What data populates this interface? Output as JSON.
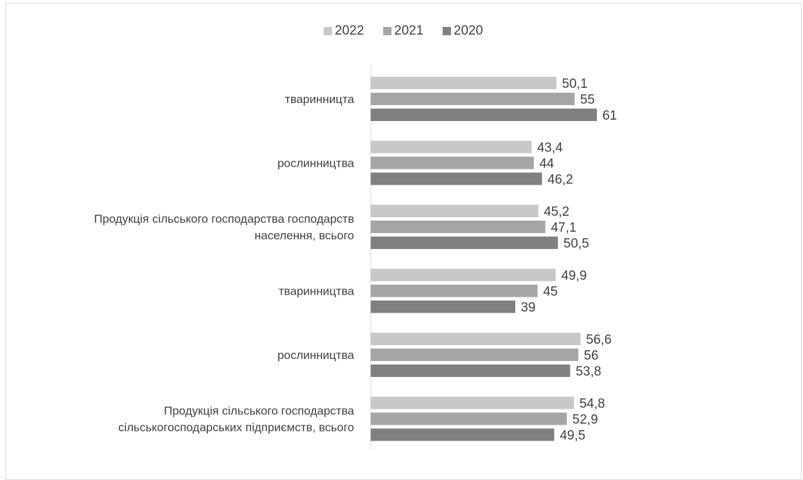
{
  "chart_data": {
    "type": "bar",
    "orientation": "horizontal",
    "title": "",
    "xlabel": "",
    "ylabel": "",
    "xlim": [
      0,
      62.5
    ],
    "grid": false,
    "legend_position": "top",
    "categories": [
      [
        "тваринницта"
      ],
      [
        "рослинництва"
      ],
      [
        "Продукція сільського господарства господарств",
        "населення, всього"
      ],
      [
        "тваринництва"
      ],
      [
        "рослинництва"
      ],
      [
        "Продукція сільського господарства",
        "сільськогосподарських підприємств, всього"
      ]
    ],
    "series": [
      {
        "name": "2022",
        "color": "#c8c8c8",
        "values": [
          50.1,
          43.4,
          45.2,
          49.9,
          56.6,
          54.8
        ],
        "labels": [
          "50,1",
          "43,4",
          "45,2",
          "49,9",
          "56,6",
          "54,8"
        ]
      },
      {
        "name": "2021",
        "color": "#a5a5a5",
        "values": [
          55,
          44,
          47.1,
          45,
          56,
          52.9
        ],
        "labels": [
          "55",
          "44",
          "47,1",
          "45",
          "56",
          "52,9"
        ]
      },
      {
        "name": "2020",
        "color": "#808080",
        "values": [
          61,
          46.2,
          50.5,
          39,
          53.8,
          49.5
        ],
        "labels": [
          "61",
          "46,2",
          "50,5",
          "39",
          "53,8",
          "49,5"
        ]
      }
    ]
  }
}
